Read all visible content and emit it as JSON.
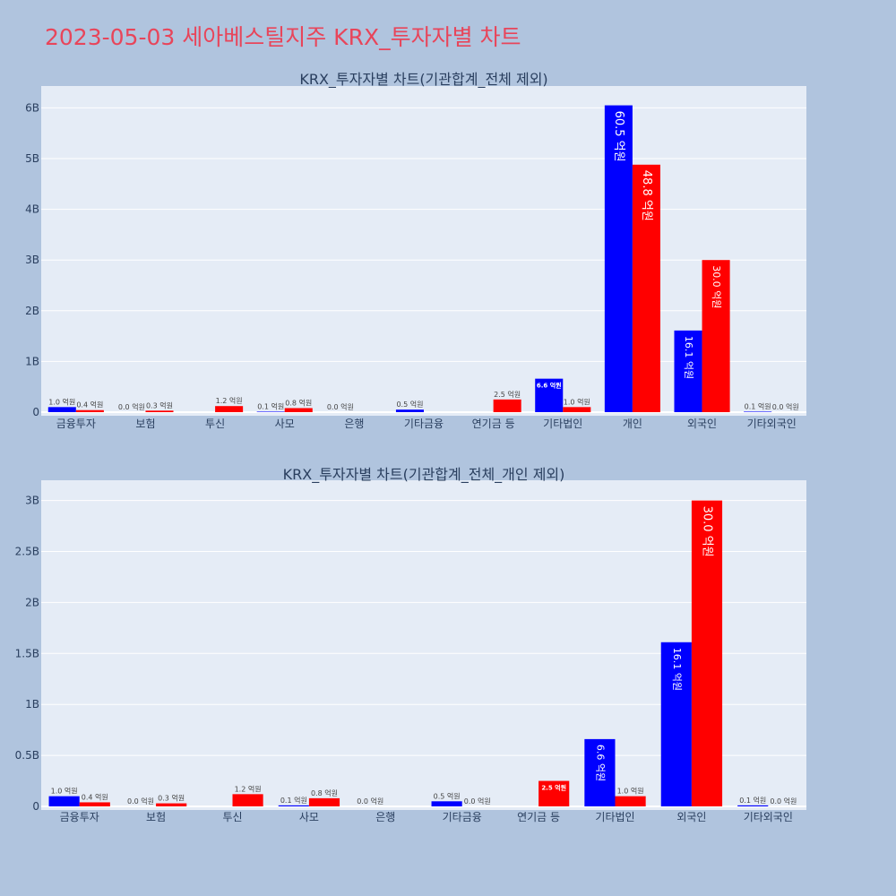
{
  "page": {
    "title": "2023-05-03 세아베스틸지주 KRX_투자자별 차트",
    "colors": {
      "background": "#b0c4de",
      "plot_bg": "#e5ecf6",
      "buy": "#0000ff",
      "sell": "#ff0000",
      "title": "#e8455a"
    }
  },
  "chart_data": [
    {
      "type": "bar",
      "title": "KRX_투자자별 차트(기관합계_전체 제외)",
      "categories": [
        "금융투자",
        "보험",
        "투신",
        "사모",
        "은행",
        "기타금융",
        "연기금 등",
        "기타법인",
        "개인",
        "외국인",
        "기타외국인"
      ],
      "yticks": [
        "0",
        "1B",
        "2B",
        "3B",
        "4B",
        "5B",
        "6B"
      ],
      "ylim": [
        0,
        6.45
      ],
      "grid": true,
      "series": [
        {
          "color": "#0000ff",
          "values": [
            0.1,
            0.0,
            0.0,
            0.01,
            0.0,
            0.05,
            0.0,
            0.66,
            6.05,
            1.61,
            0.01
          ],
          "labels": [
            "1.0 억원",
            "0.0 억원",
            "",
            "0.1 억원",
            "0.0 억원",
            "0.5 억원",
            "",
            "6.6 억원",
            "60.5 억원",
            "16.1 억원",
            "0.1 억원"
          ]
        },
        {
          "color": "#ff0000",
          "values": [
            0.04,
            0.03,
            0.12,
            0.08,
            0.0,
            0.0,
            0.25,
            0.1,
            4.88,
            3.0,
            0.0
          ],
          "labels": [
            "0.4 억원",
            "0.3 억원",
            "1.2 억원",
            "0.8 억원",
            "",
            "",
            "2.5 억원",
            "1.0 억원",
            "48.8 억원",
            "30.0 억원",
            "0.0 억원"
          ]
        }
      ]
    },
    {
      "type": "bar",
      "title": "KRX_투자자별 차트(기관합계_전체_개인 제외)",
      "categories": [
        "금융투자",
        "보험",
        "투신",
        "사모",
        "은행",
        "기타금융",
        "연기금 등",
        "기타법인",
        "외국인",
        "기타외국인"
      ],
      "yticks": [
        "0",
        "0.5B",
        "1B",
        "1.5B",
        "2B",
        "2.5B",
        "3B"
      ],
      "ylim": [
        0,
        3.15
      ],
      "grid": true,
      "series": [
        {
          "color": "#0000ff",
          "values": [
            0.1,
            0.0,
            0.0,
            0.01,
            0.0,
            0.05,
            0.0,
            0.66,
            1.61,
            0.01
          ],
          "labels": [
            "1.0 억원",
            "0.0 억원",
            "",
            "0.1 억원",
            "0.0 억원",
            "0.5 억원",
            "",
            "6.6 억원",
            "16.1 억원",
            "0.1 억원"
          ]
        },
        {
          "color": "#ff0000",
          "values": [
            0.04,
            0.03,
            0.12,
            0.08,
            0.0,
            0.0,
            0.25,
            0.1,
            3.0,
            0.0
          ],
          "labels": [
            "0.4 억원",
            "0.3 억원",
            "1.2 억원",
            "0.8 억원",
            "",
            "0.0 억원",
            "2.5 억원",
            "1.0 억원",
            "30.0 억원",
            "0.0 억원"
          ]
        }
      ]
    }
  ]
}
